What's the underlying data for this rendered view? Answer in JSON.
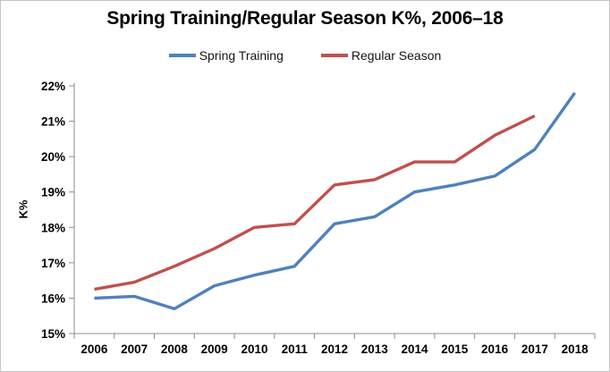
{
  "chart_data": {
    "type": "line",
    "title": "Spring Training/Regular Season K%, 2006–18",
    "ylabel": "K%",
    "xlabel": "",
    "x_tick_labels": [
      "2006",
      "2007",
      "2008",
      "2009",
      "2010",
      "2011",
      "2012",
      "2013",
      "2014",
      "2015",
      "2016",
      "2017",
      "2018"
    ],
    "y_tick_labels": [
      "15%",
      "16%",
      "17%",
      "18%",
      "19%",
      "20%",
      "21%",
      "22%"
    ],
    "ylim": [
      15,
      22
    ],
    "ytick_step": 1,
    "grid": false,
    "legend_position": "top-center",
    "axis_color": "#8c8c8c",
    "tick_label_color": "#000000",
    "series": [
      {
        "name": "Spring Training",
        "color": "#4F81BD",
        "values": [
          16.0,
          16.05,
          15.7,
          16.35,
          16.65,
          16.9,
          18.1,
          18.3,
          19.0,
          19.2,
          19.45,
          20.2,
          21.8
        ]
      },
      {
        "name": "Regular Season",
        "color": "#C0504D",
        "values": [
          16.25,
          16.45,
          16.9,
          17.4,
          18.0,
          18.1,
          19.2,
          19.35,
          19.85,
          19.85,
          20.6,
          21.15,
          null
        ]
      }
    ]
  }
}
